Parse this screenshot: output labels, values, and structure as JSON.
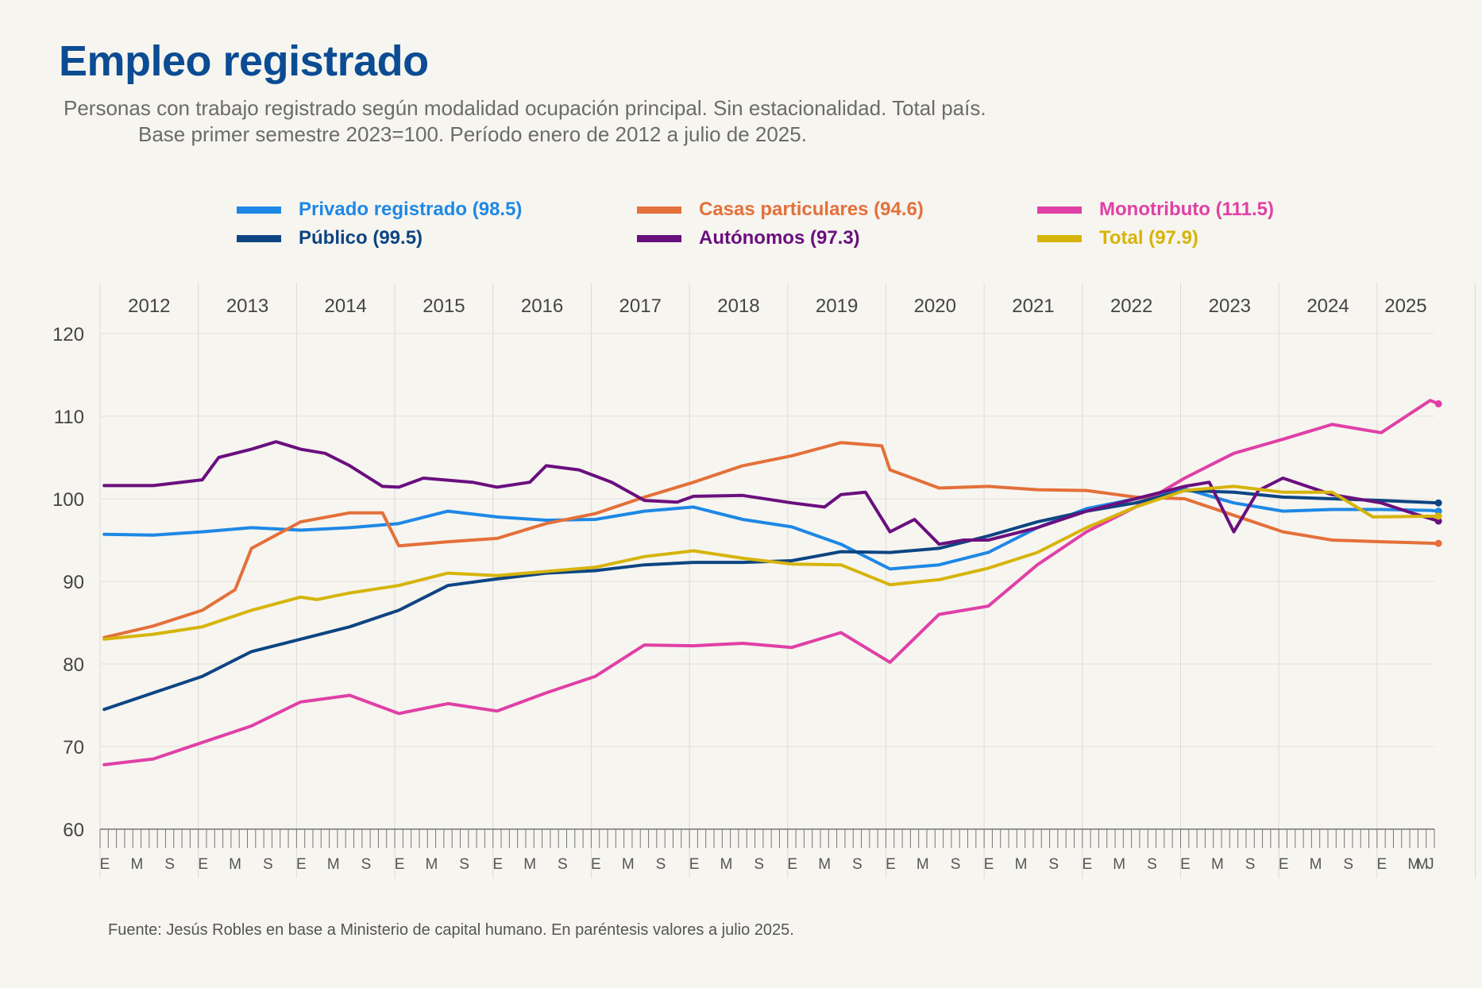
{
  "title": "Empleo registrado",
  "subtitle_line1": "Personas con trabajo registrado según modalidad ocupación principal. Sin estacionalidad. Total país.",
  "subtitle_line2": "Base primer semestre 2023=100. Período enero de 2012 a julio de 2025.",
  "source": "Fuente: Jesús Robles en base a Ministerio de capital humano. En paréntesis valores a julio 2025.",
  "legend": [
    {
      "label": "Privado registrado (98.5)",
      "color": "#1e88e5"
    },
    {
      "label": "Casas particulares (94.6)",
      "color": "#e4703a"
    },
    {
      "label": "Monotributo (111.5)",
      "color": "#e040a6"
    },
    {
      "label": "Público (99.5)",
      "color": "#0d4582"
    },
    {
      "label": "Autónomos (97.3)",
      "color": "#6a0f7e"
    },
    {
      "label": "Total (97.9)",
      "color": "#d6b40a"
    }
  ],
  "chart_data": {
    "type": "line",
    "title": "Empleo registrado",
    "xlabel": "",
    "ylabel": "",
    "ylim": [
      60,
      120
    ],
    "yticks": [
      60,
      70,
      80,
      90,
      100,
      110,
      120
    ],
    "grid": true,
    "legend_position": "top",
    "years": [
      "2012",
      "2013",
      "2014",
      "2015",
      "2016",
      "2017",
      "2018",
      "2019",
      "2020",
      "2021",
      "2022",
      "2023",
      "2024",
      "2025"
    ],
    "month_labels": [
      "E",
      "M",
      "S"
    ],
    "last_month_label": "J",
    "x_start": "2012-01",
    "x_end": "2025-07",
    "series": [
      {
        "name": "Privado registrado (98.5)",
        "color": "#1e88e5",
        "points": [
          [
            0,
            95.7
          ],
          [
            6,
            95.6
          ],
          [
            12,
            96.0
          ],
          [
            18,
            96.5
          ],
          [
            24,
            96.2
          ],
          [
            30,
            96.5
          ],
          [
            36,
            97.0
          ],
          [
            42,
            98.5
          ],
          [
            48,
            97.8
          ],
          [
            54,
            97.4
          ],
          [
            60,
            97.5
          ],
          [
            66,
            98.5
          ],
          [
            72,
            99.0
          ],
          [
            78,
            97.5
          ],
          [
            84,
            96.6
          ],
          [
            90,
            94.5
          ],
          [
            96,
            91.5
          ],
          [
            102,
            92.0
          ],
          [
            108,
            93.5
          ],
          [
            114,
            96.5
          ],
          [
            120,
            98.8
          ],
          [
            126,
            100.0
          ],
          [
            132,
            101.2
          ],
          [
            138,
            99.5
          ],
          [
            144,
            98.5
          ],
          [
            150,
            98.7
          ],
          [
            156,
            98.7
          ],
          [
            162,
            98.6
          ],
          [
            163,
            98.5
          ]
        ]
      },
      {
        "name": "Casas particulares (94.6)",
        "color": "#e4703a",
        "points": [
          [
            0,
            83.2
          ],
          [
            6,
            84.6
          ],
          [
            12,
            86.5
          ],
          [
            16,
            89.0
          ],
          [
            18,
            94.0
          ],
          [
            24,
            97.2
          ],
          [
            30,
            98.3
          ],
          [
            34,
            98.3
          ],
          [
            36,
            94.3
          ],
          [
            42,
            94.8
          ],
          [
            48,
            95.2
          ],
          [
            54,
            97.0
          ],
          [
            60,
            98.2
          ],
          [
            66,
            100.2
          ],
          [
            72,
            102.0
          ],
          [
            78,
            104.0
          ],
          [
            84,
            105.2
          ],
          [
            90,
            106.8
          ],
          [
            95,
            106.4
          ],
          [
            96,
            103.5
          ],
          [
            102,
            101.3
          ],
          [
            108,
            101.5
          ],
          [
            114,
            101.1
          ],
          [
            120,
            101.0
          ],
          [
            126,
            100.2
          ],
          [
            132,
            100.0
          ],
          [
            138,
            98.0
          ],
          [
            144,
            96.0
          ],
          [
            150,
            95.0
          ],
          [
            156,
            94.8
          ],
          [
            163,
            94.6
          ]
        ]
      },
      {
        "name": "Monotributo (111.5)",
        "color": "#e040a6",
        "points": [
          [
            0,
            67.8
          ],
          [
            6,
            68.5
          ],
          [
            12,
            70.5
          ],
          [
            18,
            72.5
          ],
          [
            24,
            75.4
          ],
          [
            30,
            76.2
          ],
          [
            36,
            74.0
          ],
          [
            42,
            75.2
          ],
          [
            48,
            74.3
          ],
          [
            54,
            76.5
          ],
          [
            60,
            78.5
          ],
          [
            66,
            82.3
          ],
          [
            72,
            82.2
          ],
          [
            78,
            82.5
          ],
          [
            84,
            82.0
          ],
          [
            90,
            83.8
          ],
          [
            96,
            80.2
          ],
          [
            102,
            86.0
          ],
          [
            108,
            87.0
          ],
          [
            114,
            92.0
          ],
          [
            120,
            96.0
          ],
          [
            126,
            99.0
          ],
          [
            132,
            102.5
          ],
          [
            138,
            105.5
          ],
          [
            144,
            107.2
          ],
          [
            150,
            109.0
          ],
          [
            156,
            108.0
          ],
          [
            162,
            111.9
          ],
          [
            163,
            111.5
          ]
        ]
      },
      {
        "name": "Público (99.5)",
        "color": "#0d4582",
        "points": [
          [
            0,
            74.5
          ],
          [
            6,
            76.5
          ],
          [
            12,
            78.5
          ],
          [
            18,
            81.5
          ],
          [
            24,
            83.0
          ],
          [
            30,
            84.5
          ],
          [
            36,
            86.5
          ],
          [
            42,
            89.5
          ],
          [
            48,
            90.3
          ],
          [
            54,
            91.0
          ],
          [
            60,
            91.3
          ],
          [
            66,
            92.0
          ],
          [
            72,
            92.3
          ],
          [
            78,
            92.3
          ],
          [
            84,
            92.5
          ],
          [
            90,
            93.6
          ],
          [
            96,
            93.5
          ],
          [
            102,
            94.0
          ],
          [
            108,
            95.5
          ],
          [
            114,
            97.2
          ],
          [
            120,
            98.5
          ],
          [
            126,
            99.5
          ],
          [
            132,
            101.0
          ],
          [
            138,
            100.8
          ],
          [
            144,
            100.2
          ],
          [
            150,
            100.0
          ],
          [
            156,
            99.8
          ],
          [
            163,
            99.5
          ]
        ]
      },
      {
        "name": "Autónomos (97.3)",
        "color": "#6a0f7e",
        "points": [
          [
            0,
            101.6
          ],
          [
            6,
            101.6
          ],
          [
            12,
            102.3
          ],
          [
            14,
            105.0
          ],
          [
            18,
            106.0
          ],
          [
            21,
            106.9
          ],
          [
            24,
            106.0
          ],
          [
            27,
            105.5
          ],
          [
            30,
            104.0
          ],
          [
            34,
            101.5
          ],
          [
            36,
            101.4
          ],
          [
            39,
            102.5
          ],
          [
            45,
            102.0
          ],
          [
            48,
            101.4
          ],
          [
            52,
            102.0
          ],
          [
            54,
            104.0
          ],
          [
            58,
            103.5
          ],
          [
            62,
            102.0
          ],
          [
            66,
            99.8
          ],
          [
            70,
            99.6
          ],
          [
            72,
            100.3
          ],
          [
            78,
            100.4
          ],
          [
            84,
            99.5
          ],
          [
            88,
            99.0
          ],
          [
            90,
            100.5
          ],
          [
            93,
            100.8
          ],
          [
            96,
            96.0
          ],
          [
            99,
            97.5
          ],
          [
            102,
            94.5
          ],
          [
            105,
            95.0
          ],
          [
            108,
            95.0
          ],
          [
            114,
            96.5
          ],
          [
            120,
            98.5
          ],
          [
            126,
            100.0
          ],
          [
            132,
            101.5
          ],
          [
            135,
            102.0
          ],
          [
            138,
            96.0
          ],
          [
            141,
            101.0
          ],
          [
            144,
            102.5
          ],
          [
            150,
            100.5
          ],
          [
            156,
            99.5
          ],
          [
            160,
            98.2
          ],
          [
            163,
            97.3
          ]
        ]
      },
      {
        "name": "Total (97.9)",
        "color": "#d6b40a",
        "points": [
          [
            0,
            83.0
          ],
          [
            6,
            83.6
          ],
          [
            12,
            84.5
          ],
          [
            18,
            86.5
          ],
          [
            24,
            88.1
          ],
          [
            26,
            87.8
          ],
          [
            30,
            88.6
          ],
          [
            36,
            89.5
          ],
          [
            42,
            91.0
          ],
          [
            48,
            90.7
          ],
          [
            54,
            91.2
          ],
          [
            60,
            91.7
          ],
          [
            66,
            93.0
          ],
          [
            72,
            93.7
          ],
          [
            78,
            92.8
          ],
          [
            84,
            92.1
          ],
          [
            90,
            92.0
          ],
          [
            96,
            89.6
          ],
          [
            102,
            90.2
          ],
          [
            108,
            91.6
          ],
          [
            114,
            93.5
          ],
          [
            120,
            96.5
          ],
          [
            126,
            99.0
          ],
          [
            132,
            101.0
          ],
          [
            138,
            101.5
          ],
          [
            144,
            100.8
          ],
          [
            150,
            100.8
          ],
          [
            155,
            97.8
          ],
          [
            163,
            97.9
          ]
        ]
      }
    ]
  }
}
